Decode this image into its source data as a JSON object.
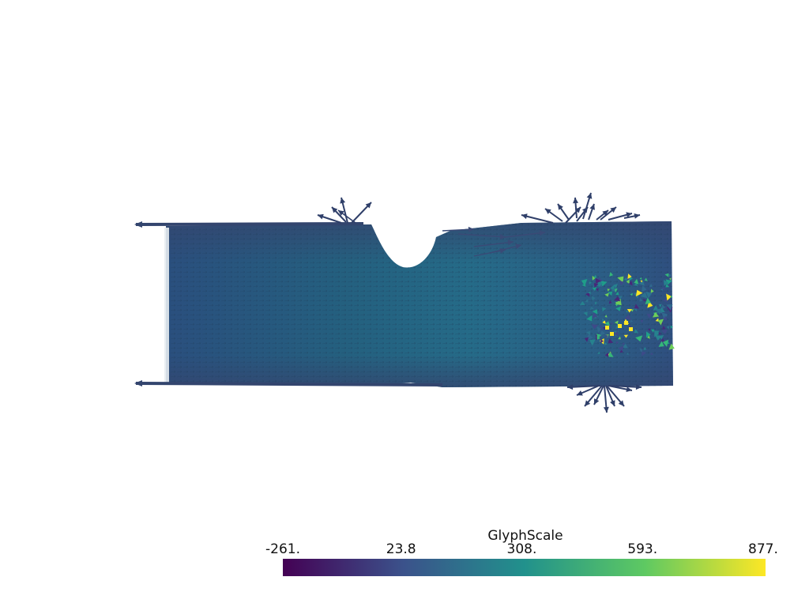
{
  "render": {
    "background": "#ffffff",
    "glyph_type": "arrow-icon",
    "field_color_low": "#3b4c83",
    "field_color_mid": "#26688b",
    "field_color_high": "#fde725"
  },
  "scalar_bar": {
    "title": "GlyphScale",
    "colormap": "viridis",
    "min": -261,
    "max": 877,
    "labels": [
      "-261.",
      "23.8",
      "308.",
      "593.",
      "877."
    ],
    "colors": [
      "#440154",
      "#3b528b",
      "#21918c",
      "#5ec962",
      "#fde725"
    ]
  }
}
